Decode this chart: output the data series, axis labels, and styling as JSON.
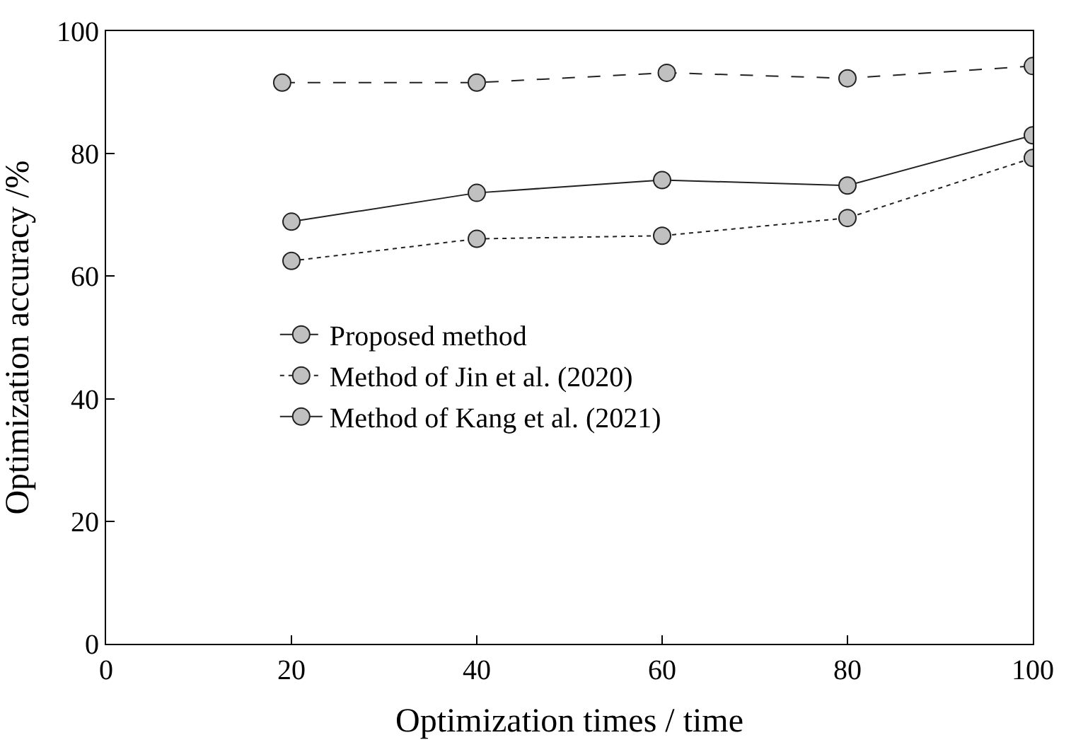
{
  "chart_data": {
    "type": "line",
    "xlabel": "Optimization times / time",
    "ylabel": "Optimization accuracy /%",
    "xlim": [
      0,
      100
    ],
    "xticks": [
      0,
      20,
      40,
      60,
      80,
      100
    ],
    "ylim": [
      0,
      100
    ],
    "yticks": [
      0,
      20,
      40,
      60,
      80,
      100
    ],
    "grid": false,
    "legend": "center",
    "marker": "circle",
    "series": [
      {
        "name": "Proposed method",
        "color": "#222222",
        "line_style": "dashed",
        "x": [
          19,
          40,
          60.5,
          80,
          100
        ],
        "values": [
          91.6,
          91.6,
          93.2,
          92.3,
          94.3
        ]
      },
      {
        "name": "Method of Jin et al. (2020)",
        "color": "#222222",
        "line_style": "dotted",
        "x": [
          20,
          40,
          60,
          80,
          100
        ],
        "values": [
          62.5,
          66.1,
          66.6,
          69.5,
          79.3
        ]
      },
      {
        "name": "Method of Kang et al. (2021)",
        "color": "#222222",
        "line_style": "solid",
        "x": [
          20,
          40,
          60,
          80,
          100
        ],
        "values": [
          68.9,
          73.6,
          75.7,
          74.8,
          83.0
        ]
      }
    ]
  }
}
